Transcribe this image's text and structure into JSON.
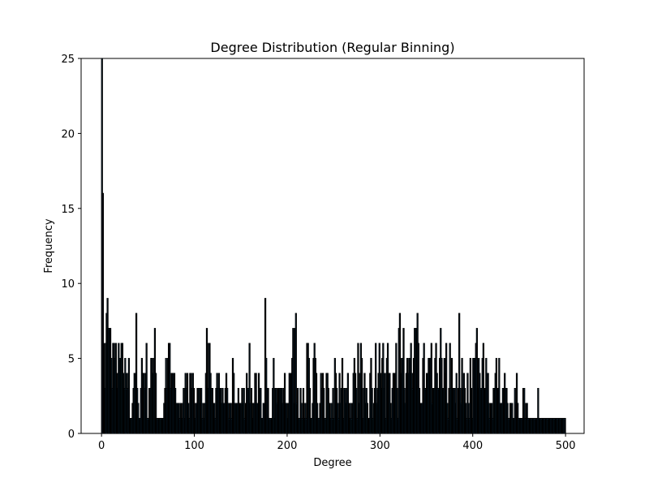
{
  "chart_data": {
    "type": "bar",
    "title": "Degree Distribution (Regular Binning)",
    "xlabel": "Degree",
    "ylabel": "Frequency",
    "xlim": [
      -22,
      520
    ],
    "ylim": [
      0,
      25
    ],
    "x_ticks": [
      0,
      100,
      200,
      300,
      400,
      500
    ],
    "y_ticks": [
      0,
      5,
      10,
      15,
      20,
      25
    ],
    "grid": false,
    "bar_fill": "#1f77b4",
    "bar_edge": "#000000",
    "bin_width": 1,
    "bins_start": 0,
    "values": [
      25,
      16,
      6,
      3,
      6,
      8,
      9,
      7,
      7,
      7,
      5,
      3,
      6,
      6,
      5,
      6,
      3,
      4,
      6,
      5,
      5,
      6,
      6,
      4,
      3,
      5,
      3,
      4,
      3,
      5,
      1,
      1,
      1,
      2,
      3,
      4,
      4,
      8,
      3,
      2,
      1,
      1,
      3,
      5,
      4,
      4,
      3,
      4,
      6,
      1,
      1,
      3,
      3,
      5,
      5,
      4,
      5,
      7,
      4,
      1,
      1,
      1,
      1,
      1,
      1,
      1,
      1,
      2,
      3,
      5,
      3,
      5,
      6,
      6,
      3,
      4,
      4,
      4,
      4,
      3,
      2,
      2,
      2,
      2,
      1,
      2,
      1,
      2,
      3,
      1,
      4,
      3,
      4,
      2,
      1,
      4,
      4,
      3,
      4,
      3,
      1,
      2,
      2,
      3,
      3,
      3,
      2,
      3,
      1,
      2,
      1,
      2,
      4,
      7,
      3,
      6,
      6,
      4,
      3,
      3,
      2,
      2,
      1,
      3,
      4,
      3,
      4,
      3,
      3,
      2,
      3,
      2,
      2,
      3,
      4,
      3,
      2,
      1,
      2,
      2,
      1,
      5,
      4,
      2,
      2,
      2,
      2,
      3,
      2,
      2,
      2,
      3,
      2,
      3,
      1,
      2,
      4,
      3,
      3,
      6,
      2,
      3,
      1,
      2,
      2,
      4,
      4,
      2,
      2,
      4,
      3,
      3,
      1,
      1,
      2,
      2,
      9,
      5,
      3,
      3,
      1,
      1,
      1,
      1,
      3,
      5,
      1,
      3,
      3,
      2,
      3,
      3,
      3,
      3,
      3,
      2,
      3,
      4,
      2,
      2,
      1,
      2,
      4,
      4,
      4,
      5,
      7,
      2,
      7,
      8,
      2,
      3,
      1,
      1,
      3,
      2,
      1,
      3,
      1,
      2,
      1,
      6,
      6,
      5,
      3,
      1,
      1,
      2,
      5,
      6,
      5,
      4,
      2,
      1,
      1,
      2,
      4,
      3,
      4,
      3,
      1,
      1,
      4,
      4,
      3,
      2,
      1,
      2,
      1,
      3,
      1,
      5,
      4,
      3,
      2,
      1,
      4,
      2,
      3,
      5,
      1,
      3,
      3,
      2,
      3,
      4,
      2,
      1,
      2,
      1,
      2,
      4,
      5,
      4,
      3,
      1,
      6,
      2,
      4,
      6,
      5,
      1,
      3,
      4,
      2,
      3,
      2,
      1,
      1,
      4,
      5,
      3,
      1,
      2,
      3,
      6,
      2,
      3,
      4,
      6,
      4,
      3,
      5,
      6,
      3,
      4,
      1,
      5,
      6,
      4,
      4,
      2,
      1,
      3,
      4,
      4,
      4,
      6,
      3,
      1,
      7,
      8,
      4,
      5,
      5,
      7,
      3,
      2,
      4,
      5,
      4,
      5,
      5,
      6,
      4,
      3,
      5,
      7,
      7,
      7,
      8,
      6,
      3,
      2,
      2,
      2,
      5,
      6,
      3,
      3,
      4,
      4,
      5,
      5,
      5,
      6,
      2,
      3,
      3,
      5,
      6,
      4,
      3,
      3,
      5,
      7,
      5,
      3,
      3,
      5,
      4,
      6,
      2,
      1,
      3,
      6,
      3,
      5,
      3,
      3,
      3,
      2,
      4,
      1,
      3,
      8,
      3,
      2,
      5,
      3,
      4,
      3,
      2,
      1,
      4,
      2,
      1,
      5,
      3,
      1,
      5,
      5,
      5,
      6,
      7,
      3,
      5,
      4,
      3,
      3,
      5,
      6,
      3,
      3,
      5,
      4,
      4,
      2,
      1,
      2,
      2,
      1,
      3,
      3,
      4,
      5,
      3,
      3,
      5,
      2,
      2,
      2,
      3,
      3,
      4,
      3,
      3,
      2,
      1,
      1,
      2,
      2,
      2,
      1,
      1,
      3,
      2,
      4,
      2,
      1,
      1,
      1,
      1,
      1,
      3,
      3,
      1,
      2,
      2,
      1,
      1,
      1,
      1,
      1,
      1,
      1,
      1,
      1,
      1,
      1,
      3,
      1,
      1,
      1,
      1,
      1,
      1,
      1,
      1,
      1,
      1,
      1,
      1,
      1,
      1,
      1,
      1,
      1,
      1,
      1,
      1,
      1,
      1,
      1,
      1,
      1,
      1,
      1,
      1,
      1
    ]
  }
}
